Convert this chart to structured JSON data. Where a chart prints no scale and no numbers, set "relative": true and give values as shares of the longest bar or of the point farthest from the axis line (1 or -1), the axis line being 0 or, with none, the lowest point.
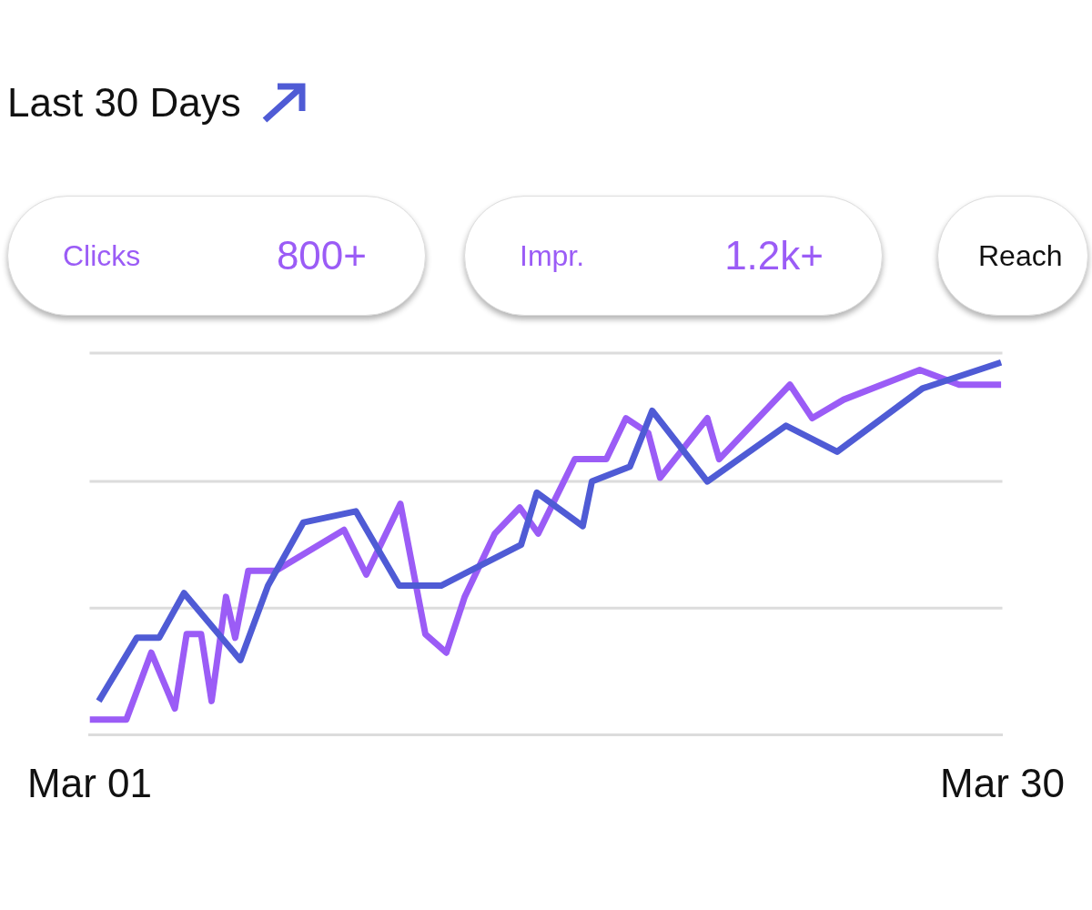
{
  "chart_data": {
    "type": "line",
    "title": "Last 30 Days",
    "relative": true,
    "ref_lines": [
      {
        "axis": "y",
        "value": 0.34,
        "color": "#dcdcdc"
      },
      {
        "axis": "y",
        "value": 0.68,
        "color": "#dcdcdc"
      }
    ],
    "legend": false,
    "marker": "none",
    "line_style": "solid",
    "annotations": [
      "Clicks",
      "800+",
      "Impr.",
      "1.2k+",
      "Reach"
    ],
    "xlim": [
      "--03-01",
      "--03-30"
    ],
    "xticks": [
      {
        "value": "--03-01",
        "label": "Mar 01"
      },
      {
        "value": "--03-30",
        "label": "Mar 30"
      }
    ],
    "series": [
      {
        "color": "#4f5bd5",
        "x": [
          "--03-01T07:00",
          "--03-02T12:00",
          "--03-03T05:00",
          "--03-04T00:00",
          "--03-05T19:00",
          "--03-06T16:00",
          "--03-07T19:00",
          "--03-09T11:00",
          "--03-10T20:00",
          "--03-12T04:00",
          "--03-14T17:00",
          "--03-15T05:00",
          "--03-16T16:00",
          "--03-16T23:00",
          "--03-18T04:00",
          "--03-18T21:00",
          "--03-20T15:00",
          "--03-23T03:00",
          "--03-24T18:00",
          "--03-27T11:00",
          "--03-29T23:00"
        ],
        "values": [
          0.09,
          0.26,
          0.26,
          0.38,
          0.2,
          0.4,
          0.57,
          0.6,
          0.4,
          0.4,
          0.51,
          0.65,
          0.56,
          0.68,
          0.72,
          0.87,
          0.68,
          0.83,
          0.76,
          0.93,
          1
        ]
      },
      {
        "color": "#9b5cf6",
        "x": [
          "--03-01T00:00",
          "--03-02T04:00",
          "--03-02T23:00",
          "--03-03T17:00",
          "--03-04T02:00",
          "--03-04T13:00",
          "--03-04T21:00",
          "--03-05T08:00",
          "--03-05T15:00",
          "--03-06T01:00",
          "--03-06T22:00",
          "--03-09T02:00",
          "--03-09T19:00",
          "--03-10T21:00",
          "--03-11T16:00",
          "--03-12T08:00",
          "--03-12T22:00",
          "--03-13T21:00",
          "--03-14T16:00",
          "--03-15T06:00",
          "--03-16T10:00",
          "--03-17T10:00",
          "--03-18T01:00",
          "--03-18T18:00",
          "--03-19T03:00",
          "--03-20T15:00",
          "--03-21T00:00",
          "--03-23T06:00",
          "--03-23T23:00",
          "--03-24T23:00",
          "--03-27T09:00",
          "--03-28T15:00",
          "--03-29T23:00"
        ],
        "values": [
          0.04,
          0.04,
          0.22,
          0.07,
          0.27,
          0.27,
          0.09,
          0.37,
          0.26,
          0.44,
          0.44,
          0.55,
          0.43,
          0.62,
          0.27,
          0.22,
          0.37,
          0.54,
          0.61,
          0.54,
          0.74,
          0.74,
          0.85,
          0.81,
          0.69,
          0.85,
          0.74,
          0.94,
          0.85,
          0.9,
          0.98,
          0.94,
          0.94
        ]
      }
    ]
  }
}
